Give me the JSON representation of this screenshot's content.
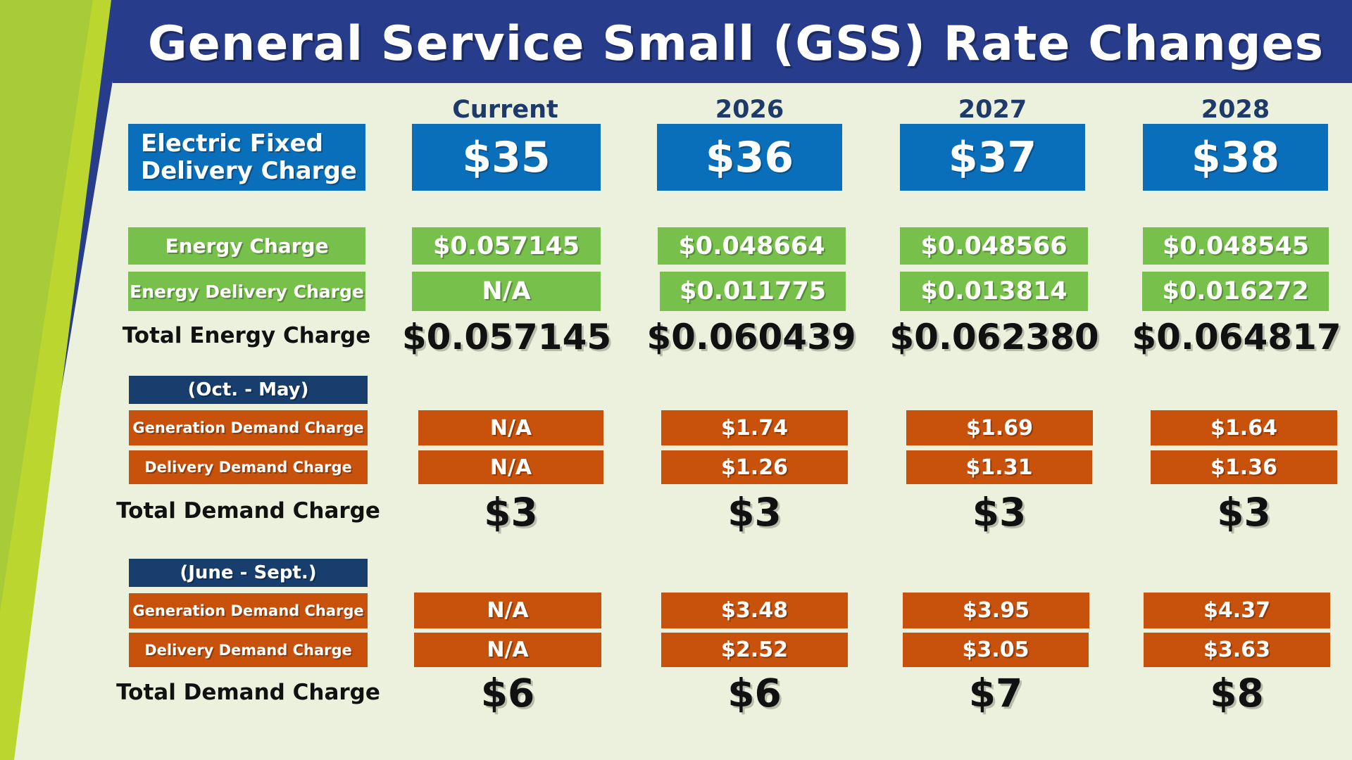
{
  "title": "General Service Small (GSS) Rate Changes",
  "columns": [
    "Current",
    "2026",
    "2027",
    "2028"
  ],
  "fixed_delivery": {
    "label": "Electric Fixed Delivery Charge",
    "values": [
      "$35",
      "$36",
      "$37",
      "$38"
    ]
  },
  "energy": {
    "energy_charge": {
      "label": "Energy Charge",
      "values": [
        "$0.057145",
        "$0.048664",
        "$0.048566",
        "$0.048545"
      ]
    },
    "energy_delivery_charge": {
      "label": "Energy Delivery Charge",
      "values": [
        "N/A",
        "$0.011775",
        "$0.013814",
        "$0.016272"
      ]
    },
    "total": {
      "label": "Total Energy Charge",
      "values": [
        "$0.057145",
        "$0.060439",
        "$0.062380",
        "$0.064817"
      ]
    }
  },
  "winter": {
    "season": "(Oct. - May)",
    "generation": {
      "label": "Generation Demand Charge",
      "values": [
        "N/A",
        "$1.74",
        "$1.69",
        "$1.64"
      ]
    },
    "delivery": {
      "label": "Delivery Demand Charge",
      "values": [
        "N/A",
        "$1.26",
        "$1.31",
        "$1.36"
      ]
    },
    "total": {
      "label": "Total Demand Charge",
      "values": [
        "$3",
        "$3",
        "$3",
        "$3"
      ]
    }
  },
  "summer": {
    "season": "(June - Sept.)",
    "generation": {
      "label": "Generation Demand Charge",
      "values": [
        "N/A",
        "$3.48",
        "$3.95",
        "$4.37"
      ]
    },
    "delivery": {
      "label": "Delivery Demand Charge",
      "values": [
        "N/A",
        "$2.52",
        "$3.05",
        "$3.63"
      ]
    },
    "total": {
      "label": "Total Demand Charge",
      "values": [
        "$6",
        "$6",
        "$7",
        "$8"
      ]
    }
  },
  "colors": {
    "navy_banner": "#283c8c",
    "background": "#ebf1dc",
    "lime_stripe": "#bcd630",
    "blue": "#0a6fba",
    "green": "#76c04b",
    "orange": "#c8510c",
    "dark_navy": "#173e6c"
  }
}
